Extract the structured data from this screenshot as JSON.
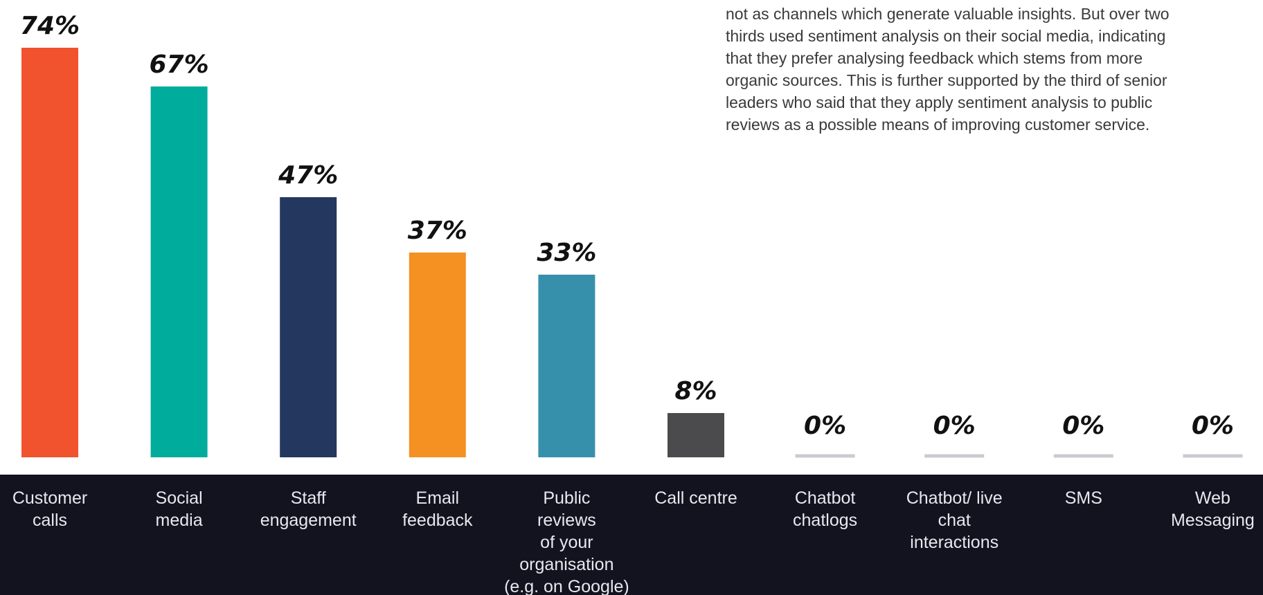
{
  "chart_data": {
    "type": "bar",
    "categories": [
      "Customer\ncalls",
      "Social\nmedia",
      "Staff\nengagement",
      "Email\nfeedback",
      "Public\nreviews\nof your\norganisation\n(e.g. on Google)",
      "Call centre",
      "Chatbot\nchatlogs",
      "Chatbot/ live\nchat\ninteractions",
      "SMS",
      "Web\nMessaging"
    ],
    "values": [
      74,
      67,
      47,
      37,
      33,
      8,
      0,
      0,
      0,
      0
    ],
    "value_labels": [
      "74%",
      "67%",
      "47%",
      "37%",
      "33%",
      "8%",
      "0%",
      "0%",
      "0%",
      "0%"
    ],
    "colors": [
      "#f0532d",
      "#00ac9b",
      "#24375f",
      "#f59022",
      "#3790ab",
      "#4b4b4d",
      "#c9cbd0",
      "#c9cbd0",
      "#c9cbd0",
      "#c9cbd0"
    ]
  },
  "note": [
    "not as channels which generate valuable insights. But over two",
    "thirds used sentiment analysis on their social media, indicating",
    "that they prefer analysing feedback which stems from more",
    "organic sources. This is further supported by the third of senior",
    "leaders who said that they apply sentiment analysis to public",
    "reviews as a possible means of improving customer service."
  ]
}
